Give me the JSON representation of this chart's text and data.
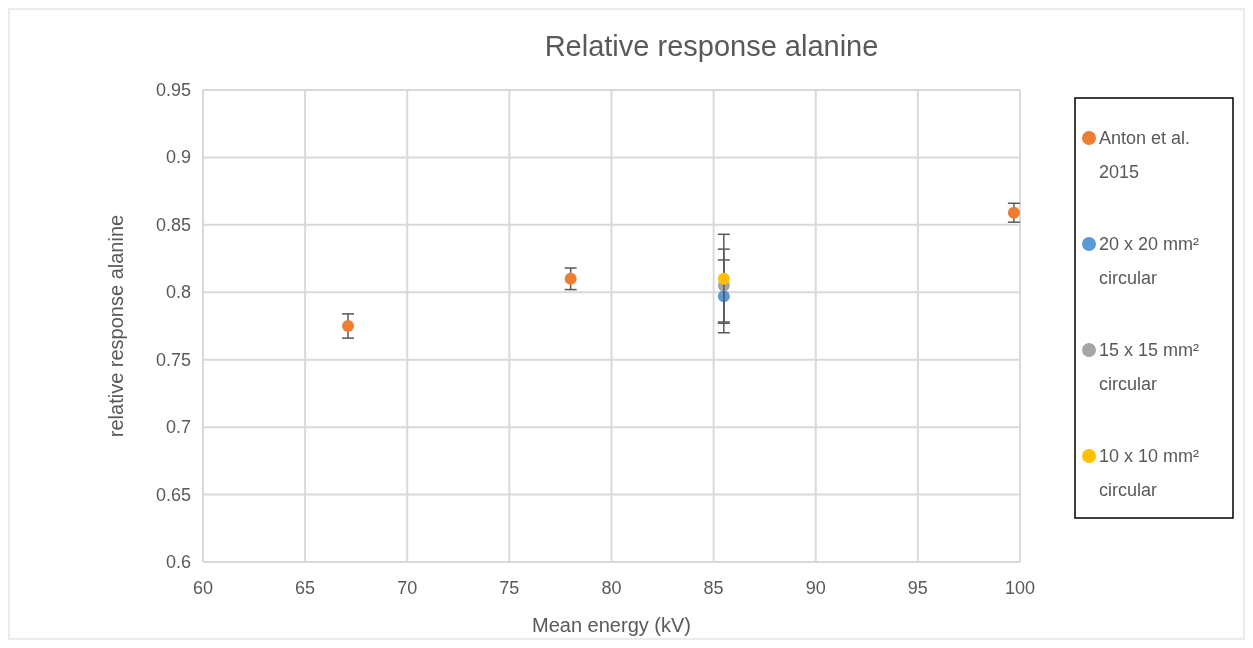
{
  "chart_data": {
    "type": "scatter",
    "title": "Relative response alanine",
    "xlabel": "Mean energy (kV)",
    "ylabel": "relative response alanine",
    "series": [
      {
        "name": "Anton et al. 2015",
        "color": "#ed7d31",
        "x": [
          67.1,
          78.0,
          99.7
        ],
        "values": [
          0.775,
          0.81,
          0.859
        ],
        "errors": [
          0.009,
          0.008,
          0.007
        ]
      },
      {
        "name": "20 x 20 mm² circular",
        "color": "#5b9bd5",
        "x": [
          85.5
        ],
        "values": [
          0.797
        ],
        "errors": [
          0.027
        ]
      },
      {
        "name": "15 x 15 mm² circular",
        "color": "#a5a5a5",
        "x": [
          85.5
        ],
        "values": [
          0.805
        ],
        "errors": [
          0.027
        ]
      },
      {
        "name": "10 x 10 mm² circular",
        "color": "#ffc000",
        "x": [
          85.5
        ],
        "values": [
          0.81
        ],
        "errors": [
          0.033
        ]
      }
    ],
    "xlim": [
      60,
      100
    ],
    "xticks": [
      60,
      65,
      70,
      75,
      80,
      85,
      90,
      95,
      100
    ],
    "ylim": [
      0.6,
      0.95
    ],
    "yticks": [
      {
        "value": 0.6,
        "label": "0.6"
      },
      {
        "value": 0.65,
        "label": "0.65"
      },
      {
        "value": 0.7,
        "label": "0.7"
      },
      {
        "value": 0.75,
        "label": "0.75"
      },
      {
        "value": 0.8,
        "label": "0.8"
      },
      {
        "value": 0.85,
        "label": "0.85"
      },
      {
        "value": 0.9,
        "label": "0.9"
      },
      {
        "value": 0.95,
        "label": "0.95"
      }
    ],
    "grid": true,
    "legend": "right",
    "marker": "circle"
  }
}
